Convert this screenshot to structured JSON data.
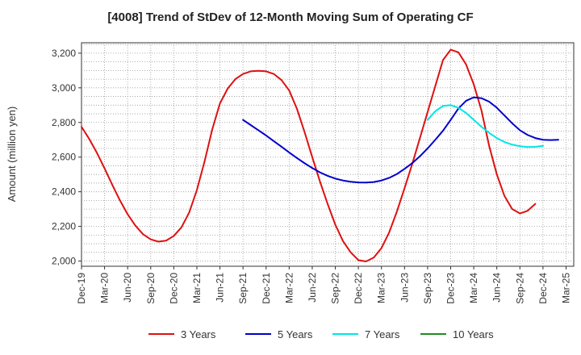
{
  "chart_data": {
    "type": "line",
    "title": "[4008]  Trend of StDev of 12-Month Moving Sum of Operating CF",
    "xlabel": "",
    "ylabel": "Amount (million yen)",
    "ylim": [
      1970,
      3260
    ],
    "yticks": [
      2000,
      2200,
      2400,
      2600,
      2800,
      3000,
      3200
    ],
    "ytick_labels": [
      "2,000",
      "2,200",
      "2,400",
      "2,600",
      "2,800",
      "3,000",
      "3,200"
    ],
    "xtick_labels": [
      "Dec-19",
      "Mar-20",
      "Jun-20",
      "Sep-20",
      "Dec-20",
      "Mar-21",
      "Jun-21",
      "Sep-21",
      "Dec-21",
      "Mar-22",
      "Jun-22",
      "Sep-22",
      "Dec-22",
      "Mar-23",
      "Jun-23",
      "Sep-23",
      "Dec-23",
      "Mar-24",
      "Jun-24",
      "Sep-24",
      "Dec-24",
      "Mar-25"
    ],
    "legend_position": "bottom",
    "grid": true,
    "series": [
      {
        "name": "3 Years",
        "color": "#dd1111",
        "start_index": 0,
        "values": [
          2775,
          2705,
          2625,
          2535,
          2440,
          2350,
          2270,
          2205,
          2155,
          2125,
          2112,
          2118,
          2145,
          2195,
          2280,
          2410,
          2575,
          2760,
          2910,
          2995,
          3050,
          3080,
          3095,
          3098,
          3095,
          3080,
          3045,
          2985,
          2880,
          2745,
          2600,
          2460,
          2330,
          2210,
          2115,
          2050,
          2005,
          1998,
          2020,
          2075,
          2165,
          2285,
          2420,
          2560,
          2710,
          2860,
          3010,
          3160,
          3220,
          3205,
          3135,
          3020,
          2870,
          2665,
          2500,
          2375,
          2300,
          2275,
          2290,
          2330
        ]
      },
      {
        "name": "5 Years",
        "color": "#0000cc",
        "start_index": 21,
        "values": [
          2815,
          2785,
          2755,
          2725,
          2692,
          2660,
          2627,
          2595,
          2565,
          2537,
          2512,
          2492,
          2476,
          2465,
          2458,
          2454,
          2453,
          2456,
          2465,
          2480,
          2502,
          2532,
          2565,
          2605,
          2650,
          2700,
          2752,
          2815,
          2880,
          2925,
          2945,
          2940,
          2920,
          2885,
          2840,
          2795,
          2755,
          2728,
          2710,
          2700,
          2698,
          2700
        ]
      },
      {
        "name": "7 Years",
        "color": "#00e5e5",
        "start_index": 45,
        "values": [
          2815,
          2865,
          2895,
          2900,
          2885,
          2855,
          2815,
          2775,
          2740,
          2710,
          2687,
          2672,
          2663,
          2658,
          2659,
          2665
        ]
      },
      {
        "name": "10 Years",
        "color": "#228b22",
        "start_index": 0,
        "values": []
      }
    ]
  }
}
